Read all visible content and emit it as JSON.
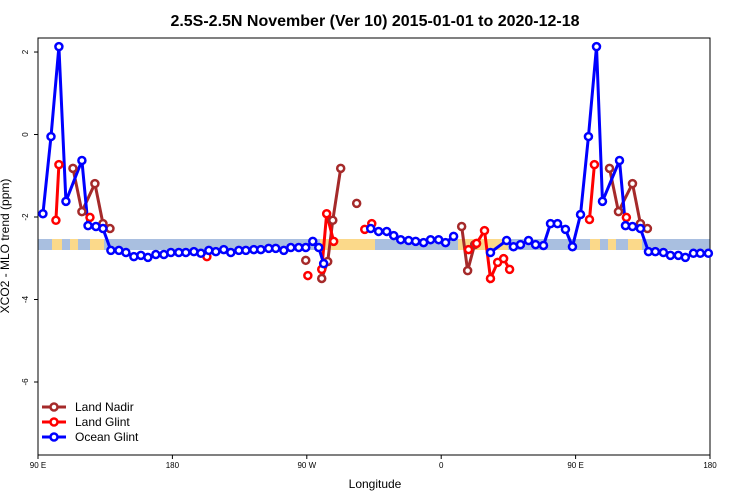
{
  "chart_data": {
    "type": "line",
    "title": "2.5S-2.5N November (Ver 10)   2015-01-01 to 2020-12-18",
    "x_label": "Longitude",
    "y_label": "XCO2 - MLO trend (ppm)",
    "xlim": [
      90,
      540
    ],
    "xticks": [
      {
        "value": 90,
        "label": "90 E"
      },
      180,
      {
        "value": 270,
        "label": "90 W"
      },
      {
        "value": 360,
        "label": "0"
      },
      {
        "value": 450,
        "label": "90 E"
      },
      {
        "value": 540,
        "label": "180"
      }
    ],
    "ylim": [
      -7.77,
      2.34
    ],
    "yticks": [
      2,
      0,
      -2,
      -4,
      -6
    ],
    "legend": "bottom-left",
    "series": [
      {
        "name": "Land Nadir",
        "color": "#a52a2a",
        "x": [
          113.4,
          119.4,
          128.1,
          133.5,
          138.2,
          null,
          269.3,
          null,
          280,
          284,
          287.4,
          292.7,
          null,
          303.4,
          null,
          373.7,
          377.7,
          382.4,
          null,
          472.7,
          478.7,
          488.1,
          493.4,
          498.1
        ],
        "values": [
          -0.82,
          -1.87,
          -1.19,
          -2.16,
          -2.28,
          null,
          -3.05,
          null,
          -3.49,
          -3.08,
          -2.08,
          -0.82,
          null,
          -1.67,
          null,
          -2.23,
          -3.3,
          -2.67,
          null,
          -0.82,
          -1.87,
          -1.19,
          -2.16,
          -2.28
        ]
      },
      {
        "name": "Land Glint",
        "color": "#ff0000",
        "x": [
          102,
          104,
          null,
          124.8,
          null,
          203.1,
          null,
          270.7,
          null,
          280,
          283.3,
          288,
          null,
          308.8,
          313.5,
          null,
          378.3,
          383.7,
          389,
          393,
          397.8,
          401.8,
          405.8,
          null,
          459.3,
          462.6,
          null,
          484
        ],
        "values": [
          -2.08,
          -0.73,
          null,
          -2.01,
          null,
          -2.96,
          null,
          -3.42,
          null,
          -3.27,
          -1.92,
          -2.59,
          null,
          -2.3,
          -2.16,
          null,
          -2.79,
          -2.64,
          -2.33,
          -3.49,
          -3.1,
          -3.01,
          -3.27,
          null,
          -2.06,
          -0.73,
          null,
          -2.01
        ]
      },
      {
        "name": "Ocean Glint",
        "color": "#0000ff",
        "x": [
          93.3,
          98.7,
          104,
          108.7,
          119.4,
          123.5,
          128.8,
          133.5,
          138.8,
          144.2,
          148.9,
          154.2,
          158.9,
          163.6,
          168.9,
          174.3,
          179,
          184.3,
          189,
          194.4,
          199.1,
          204.4,
          209.1,
          214.4,
          219.1,
          224.5,
          229.2,
          234.5,
          239.2,
          244.5,
          249.2,
          254.6,
          259.3,
          264.6,
          269.3,
          274,
          278,
          281.3,
          null,
          312.8,
          318.1,
          323.5,
          328.2,
          332.9,
          338.2,
          342.9,
          348.2,
          352.9,
          358.3,
          362.9,
          368.3,
          null,
          393,
          403.8,
          408.4,
          413.1,
          418.5,
          423.2,
          428.5,
          433.2,
          437.9,
          443.2,
          447.9,
          453.3,
          458.6,
          464,
          468,
          479.4,
          483.4,
          488.1,
          493.4,
          498.8,
          503.4,
          508.8,
          513.5,
          518.8,
          523.5,
          528.9,
          533.5,
          538.9
        ],
        "values": [
          -1.92,
          -0.05,
          2.13,
          -1.62,
          -0.63,
          -2.21,
          -2.23,
          -2.28,
          -2.81,
          -2.81,
          -2.86,
          -2.96,
          -2.93,
          -2.98,
          -2.91,
          -2.91,
          -2.86,
          -2.86,
          -2.86,
          -2.84,
          -2.88,
          -2.81,
          -2.84,
          -2.79,
          -2.86,
          -2.81,
          -2.81,
          -2.79,
          -2.79,
          -2.76,
          -2.76,
          -2.81,
          -2.74,
          -2.74,
          -2.74,
          -2.59,
          -2.74,
          -3.13,
          null,
          -2.28,
          -2.35,
          -2.35,
          -2.45,
          -2.55,
          -2.57,
          -2.59,
          -2.62,
          -2.55,
          -2.55,
          -2.62,
          -2.47,
          null,
          -2.86,
          -2.57,
          -2.72,
          -2.67,
          -2.57,
          -2.67,
          -2.69,
          -2.16,
          -2.16,
          -2.3,
          -2.72,
          -1.94,
          -0.05,
          2.13,
          -1.62,
          -0.63,
          -2.21,
          -2.23,
          -2.28,
          -2.84,
          -2.84,
          -2.86,
          -2.93,
          -2.93,
          -2.98,
          -2.88,
          -2.88,
          -2.88
        ]
      }
    ]
  }
}
